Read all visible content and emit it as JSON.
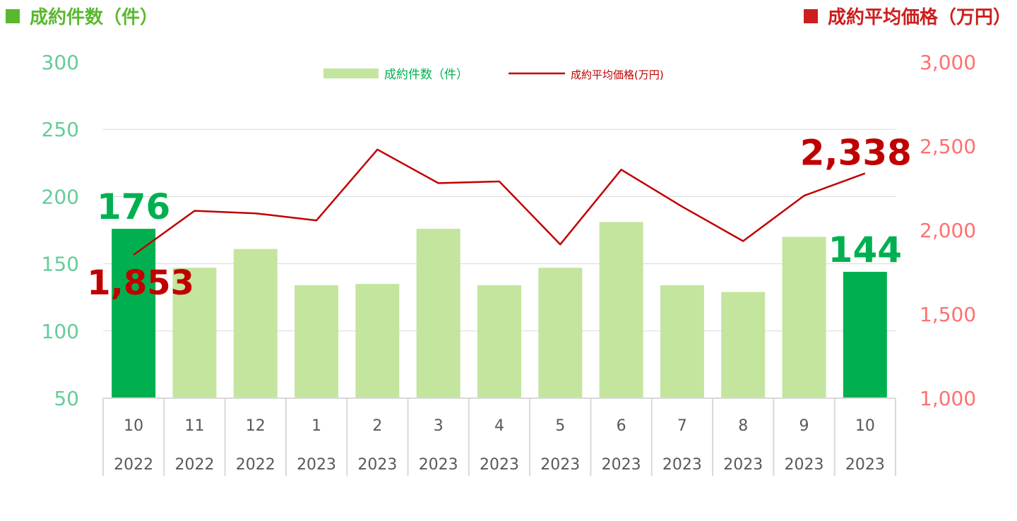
{
  "header": {
    "left_title": "成約件数（件）",
    "right_title": "成約平均価格（万円）",
    "left_color": "#5ab82e",
    "right_color": "#cc1e1e"
  },
  "chart_data": {
    "type": "bar+line",
    "categories": [
      "10",
      "11",
      "12",
      "1",
      "2",
      "3",
      "4",
      "5",
      "6",
      "7",
      "8",
      "9",
      "10"
    ],
    "category_years": [
      "2022",
      "2022",
      "2022",
      "2023",
      "2023",
      "2023",
      "2023",
      "2023",
      "2023",
      "2023",
      "2023",
      "2023",
      "2023"
    ],
    "series": [
      {
        "name": "成約件数（件）",
        "type": "bar",
        "axis": "left",
        "values": [
          176,
          147,
          161,
          134,
          135,
          176,
          134,
          147,
          181,
          134,
          129,
          170,
          144
        ],
        "color": "#c3e59e",
        "highlight_color": "#00b050",
        "highlight_indices": [
          0,
          12
        ]
      },
      {
        "name": "成約平均価格(万円)",
        "type": "line",
        "axis": "right",
        "values": [
          1853,
          2115,
          2100,
          2058,
          2480,
          2280,
          2290,
          1915,
          2360,
          2140,
          1935,
          2205,
          2338
        ],
        "color": "#c00000"
      }
    ],
    "y_left": {
      "min": 50,
      "max": 300,
      "ticks": [
        "300",
        "250",
        "200",
        "150",
        "100",
        "50"
      ],
      "color": "#66cc99"
    },
    "y_right": {
      "min": 1000,
      "max": 3000,
      "ticks": [
        "3,000",
        "2,500",
        "2,000",
        "1,500",
        "1,000"
      ],
      "color": "#ff7070"
    },
    "annotations": {
      "bar_first": "176",
      "bar_last": "144",
      "line_first": "1,853",
      "line_last": "2,338"
    },
    "legend_placement": "top-center",
    "grid": true
  }
}
